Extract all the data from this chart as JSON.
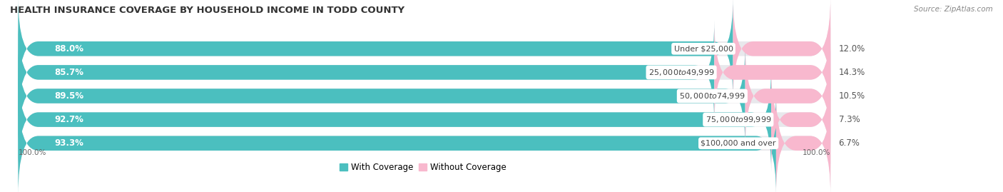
{
  "title": "HEALTH INSURANCE COVERAGE BY HOUSEHOLD INCOME IN TODD COUNTY",
  "source": "Source: ZipAtlas.com",
  "categories": [
    "Under $25,000",
    "$25,000 to $49,999",
    "$50,000 to $74,999",
    "$75,000 to $99,999",
    "$100,000 and over"
  ],
  "with_coverage": [
    88.0,
    85.7,
    89.5,
    92.7,
    93.3
  ],
  "without_coverage": [
    12.0,
    14.3,
    10.5,
    7.3,
    6.7
  ],
  "color_with": "#4bbfbf",
  "color_without": "#f07ea8",
  "color_without_light": "#f8b8ce",
  "bar_bg_color": "#e8e8ec",
  "background_color": "#ffffff",
  "legend_with": "With Coverage",
  "legend_without": "Without Coverage",
  "label_left_100": "100.0%",
  "label_right_100": "100.0%",
  "title_fontsize": 9.5,
  "label_fontsize": 8.5,
  "cat_fontsize": 8.0,
  "bar_height": 0.62,
  "n_bars": 5,
  "total": 100.0
}
